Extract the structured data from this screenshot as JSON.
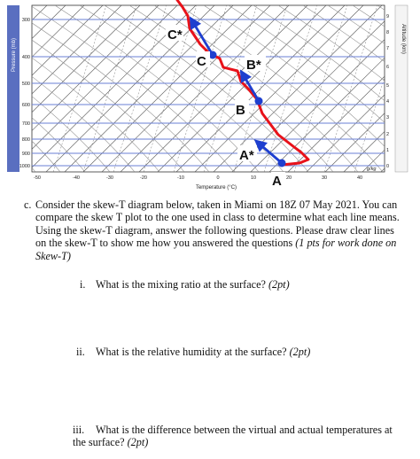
{
  "diagram": {
    "y_axis_title": "Pressure (mb)",
    "right_axis_title": "Altitude (km)",
    "x_axis_title": "Temperature (°C)",
    "pressure_ticks": [
      "300",
      "400",
      "500",
      "600",
      "700",
      "800",
      "900",
      "1000"
    ],
    "temperature_ticks": [
      "-50",
      "-40",
      "-30",
      "-20",
      "-10",
      "0",
      "10",
      "20",
      "30",
      "40"
    ],
    "altitude_ticks": [
      "9",
      "8",
      "7",
      "6",
      "5",
      "4",
      "3",
      "2",
      "1",
      "0"
    ],
    "mixing_ratio_unit": "g/kg",
    "point_labels": {
      "c_star": "C*",
      "c": "C",
      "b_star": "B*",
      "b": "B",
      "a_star": "A*",
      "a": "A"
    },
    "colors": {
      "sounding": "#e8121a",
      "arrow": "#1e3fcf",
      "point": "#1e3fcf",
      "isobar": "#6a7fd6",
      "isotherm": "#555555",
      "label_box": "#ffffff"
    }
  },
  "questions": {
    "marker": "c.",
    "intro": "Consider the skew-T diagram below, taken in Miami on 18Z 07 May 2021. You can compare the skew T plot to the one used in class to determine what each line means. Using the skew-T diagram, answer the following questions. Please draw clear lines on the skew-T to show me how you answered the questions",
    "intro_points": "(1 pts for work done on Skew-T)",
    "items": [
      {
        "roman": "i.",
        "text": "What is the mixing ratio at the surface?",
        "points": "(2pt)"
      },
      {
        "roman": "ii.",
        "text": "What is the relative humidity at the surface?",
        "points": "(2pt)"
      },
      {
        "roman": "iii.",
        "text": "What is the difference between the virtual and actual temperatures at the surface?",
        "points": "(2pt)"
      }
    ]
  }
}
